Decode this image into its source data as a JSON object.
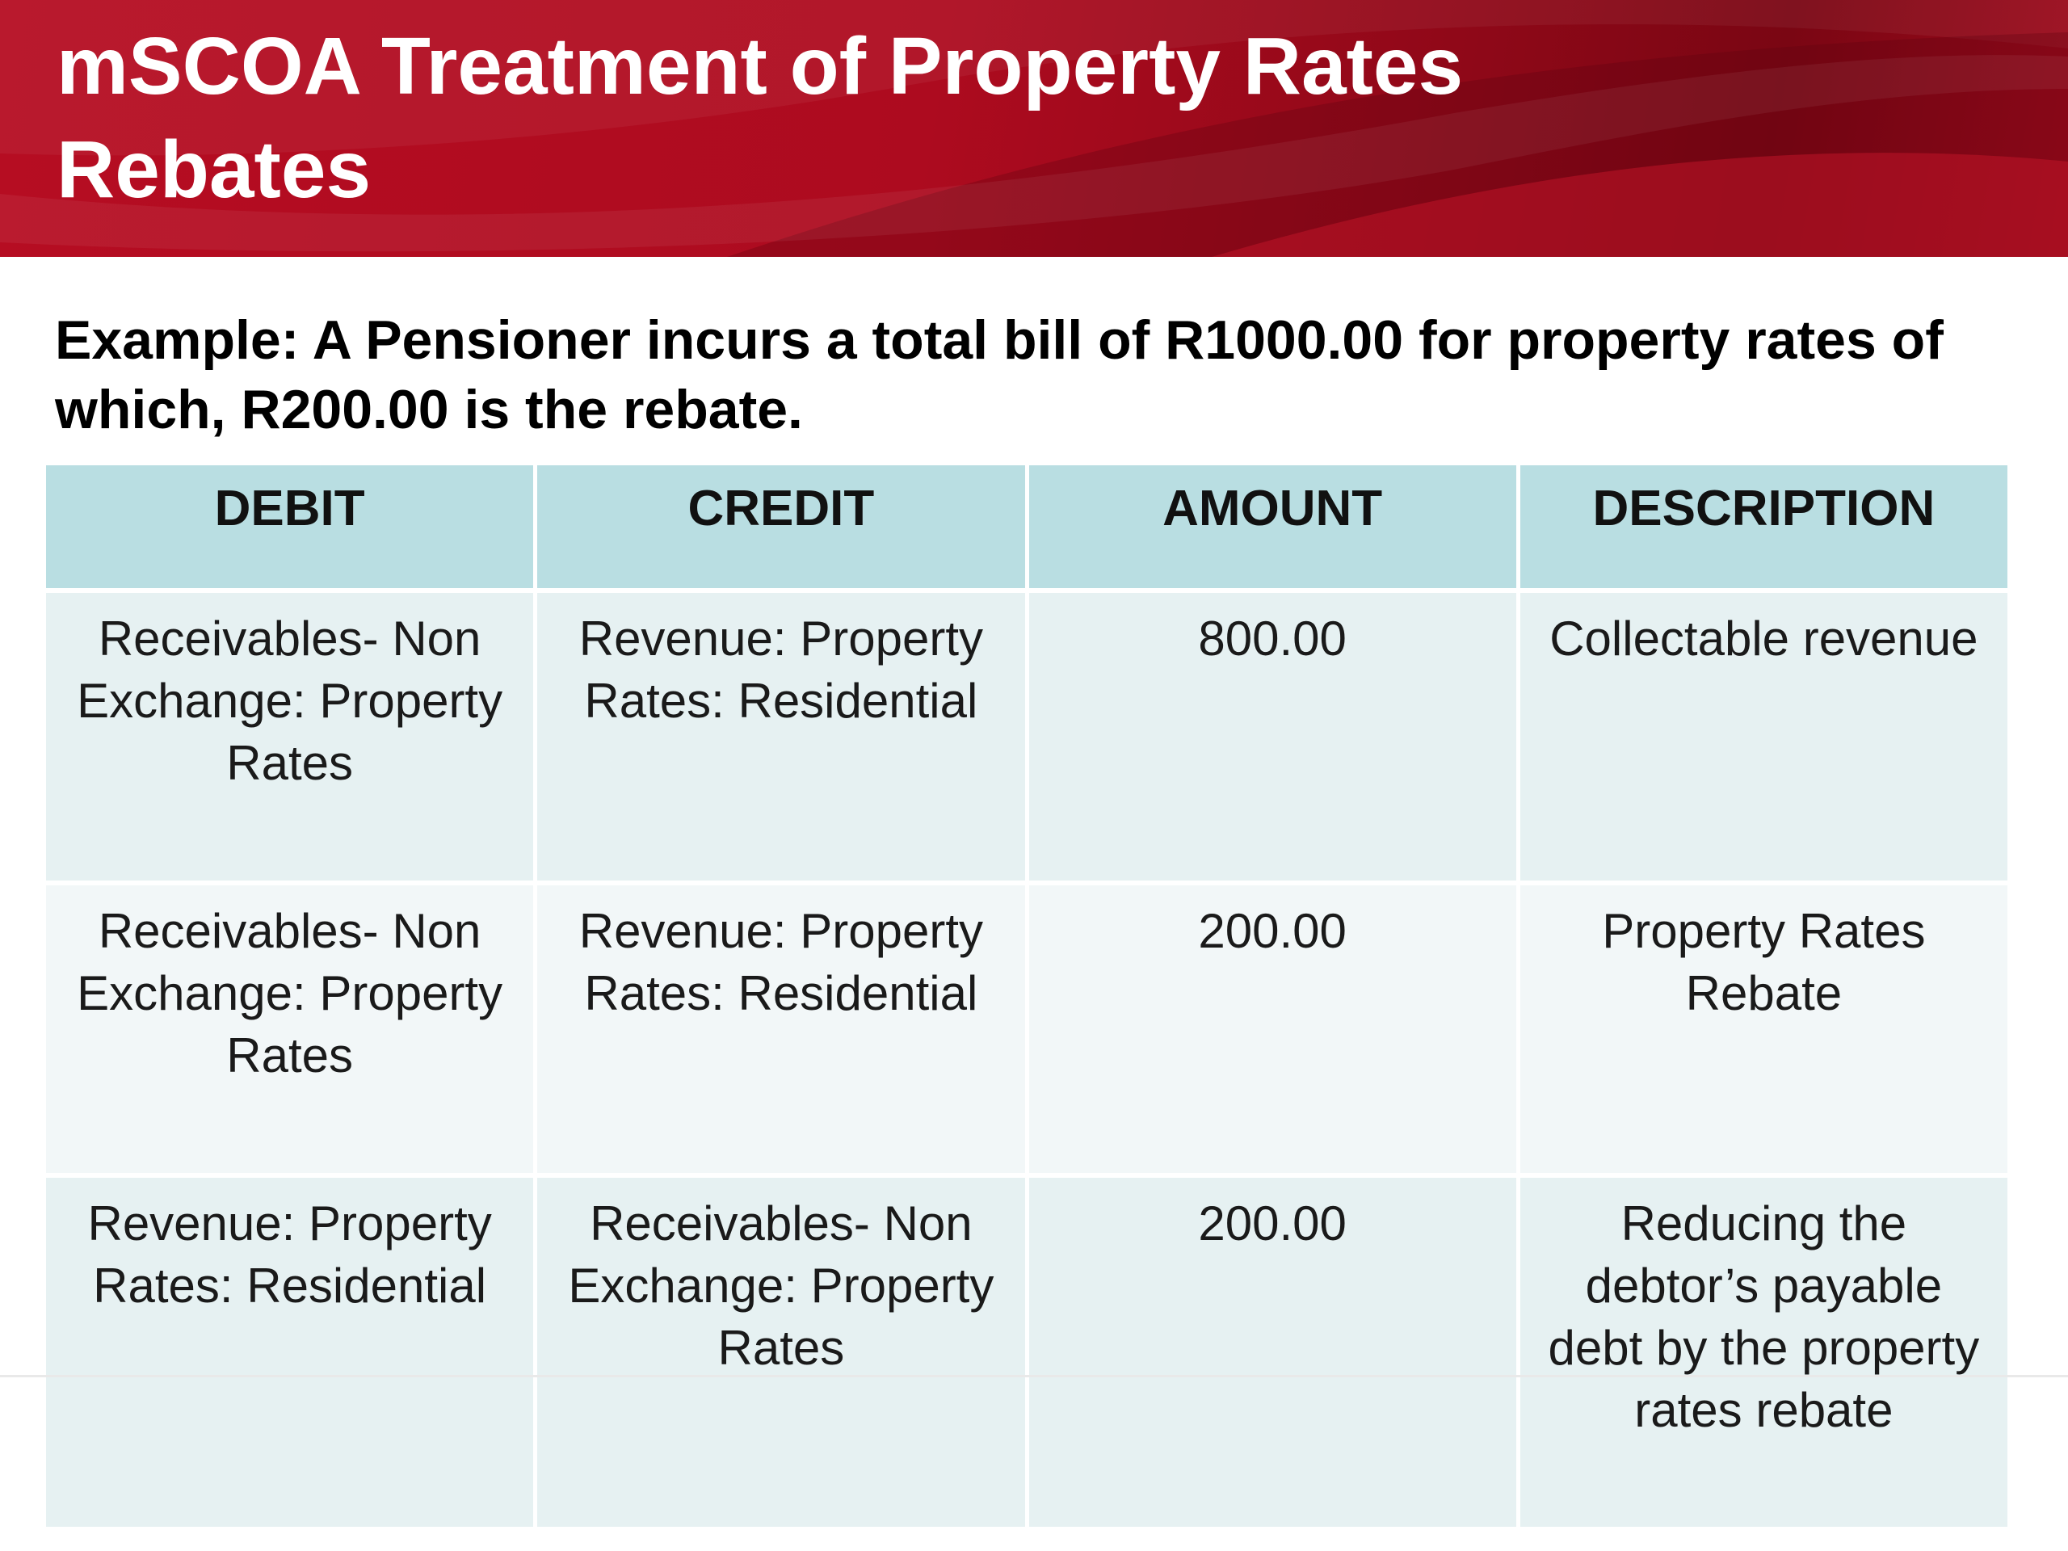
{
  "slide": {
    "title": "mSCOA Treatment of Property Rates\nRebates",
    "example": "Example: A Pensioner incurs a total bill of R1000.00 for property rates of which, R200.00 is the rebate."
  },
  "table": {
    "headers": {
      "debit": "DEBIT",
      "credit": "CREDIT",
      "amount": "AMOUNT",
      "description": "DESCRIPTION"
    },
    "rows": [
      {
        "debit": "Receivables- Non Exchange: Property Rates",
        "credit": "Revenue: Property Rates: Residential",
        "amount": "800.00",
        "description": "Collectable revenue"
      },
      {
        "debit": "Receivables- Non Exchange: Property Rates",
        "credit": "Revenue: Property Rates: Residential",
        "amount": "200.00",
        "description": "Property Rates Rebate"
      },
      {
        "debit": "Revenue: Property Rates: Residential",
        "credit": "Receivables- Non Exchange: Property Rates",
        "amount": "200.00",
        "description": "Reducing the debtor’s payable debt by the property rates rebate"
      }
    ]
  },
  "colors": {
    "banner_red": "#b60d22",
    "header_fill": "#b9dee2",
    "row_fill_a": "#e6f1f2",
    "row_fill_b": "#f2f7f8"
  }
}
